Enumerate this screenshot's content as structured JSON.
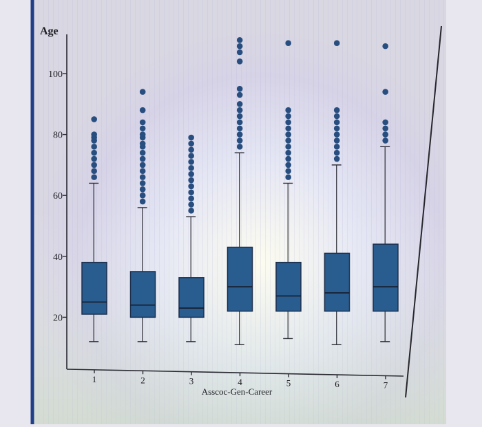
{
  "chart_data": {
    "type": "box",
    "title": "",
    "ylabel": "Age",
    "xlabel": "Asscoc-Gen-Career",
    "yticks": [
      20,
      40,
      60,
      80,
      100
    ],
    "ylim": [
      14,
      112
    ],
    "categories": [
      "1",
      "2",
      "3",
      "4",
      "5",
      "6",
      "7"
    ],
    "boxes": [
      {
        "category": "1",
        "whisker_low": 12,
        "q1": 21,
        "median": 25,
        "q3": 38,
        "whisker_high": 64,
        "outliers": [
          66,
          68,
          70,
          72,
          74,
          76,
          78,
          79,
          80,
          85
        ]
      },
      {
        "category": "2",
        "whisker_low": 12,
        "q1": 20,
        "median": 24,
        "q3": 35,
        "whisker_high": 56,
        "outliers": [
          58,
          60,
          62,
          64,
          66,
          68,
          70,
          72,
          74,
          76,
          77,
          79,
          80,
          82,
          84,
          88,
          94
        ]
      },
      {
        "category": "3",
        "whisker_low": 12,
        "q1": 20,
        "median": 23,
        "q3": 33,
        "whisker_high": 53,
        "outliers": [
          55,
          57,
          59,
          61,
          63,
          65,
          67,
          69,
          71,
          73,
          75,
          77,
          79
        ]
      },
      {
        "category": "4",
        "whisker_low": 11,
        "q1": 22,
        "median": 30,
        "q3": 43,
        "whisker_high": 74,
        "outliers": [
          76,
          78,
          80,
          82,
          84,
          86,
          88,
          90,
          93,
          95,
          104,
          107,
          109,
          111
        ]
      },
      {
        "category": "5",
        "whisker_low": 13,
        "q1": 22,
        "median": 27,
        "q3": 38,
        "whisker_high": 64,
        "outliers": [
          66,
          68,
          70,
          72,
          74,
          76,
          78,
          80,
          82,
          84,
          86,
          88,
          110
        ]
      },
      {
        "category": "6",
        "whisker_low": 11,
        "q1": 22,
        "median": 28,
        "q3": 41,
        "whisker_high": 70,
        "outliers": [
          72,
          74,
          76,
          78,
          80,
          82,
          84,
          86,
          88,
          110
        ]
      },
      {
        "category": "7",
        "whisker_low": 12,
        "q1": 22,
        "median": 30,
        "q3": 44,
        "whisker_high": 76,
        "outliers": [
          78,
          80,
          82,
          84,
          94,
          109
        ]
      }
    ],
    "colors": {
      "box": "#2a5d8f",
      "outlier": "#284e7f",
      "axis": "#2a2a33"
    },
    "grid": false
  }
}
